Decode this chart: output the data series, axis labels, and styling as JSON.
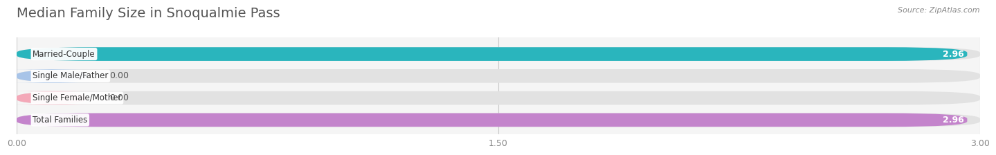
{
  "title": "Median Family Size in Snoqualmie Pass",
  "source": "Source: ZipAtlas.com",
  "categories": [
    "Married-Couple",
    "Single Male/Father",
    "Single Female/Mother",
    "Total Families"
  ],
  "values": [
    2.96,
    0.0,
    0.0,
    2.96
  ],
  "bar_colors": [
    "#2ab5bd",
    "#a8c4e8",
    "#f4a8b8",
    "#c484cc"
  ],
  "xlim": [
    0,
    3.0
  ],
  "xticks": [
    0.0,
    1.5,
    3.0
  ],
  "xtick_labels": [
    "0.00",
    "1.50",
    "3.00"
  ],
  "fig_bg_color": "#ffffff",
  "plot_bg_color": "#f5f5f5",
  "bar_bg_color": "#e2e2e2",
  "title_color": "#555555",
  "title_fontsize": 14,
  "bar_height": 0.62,
  "rounding_size": 0.25
}
